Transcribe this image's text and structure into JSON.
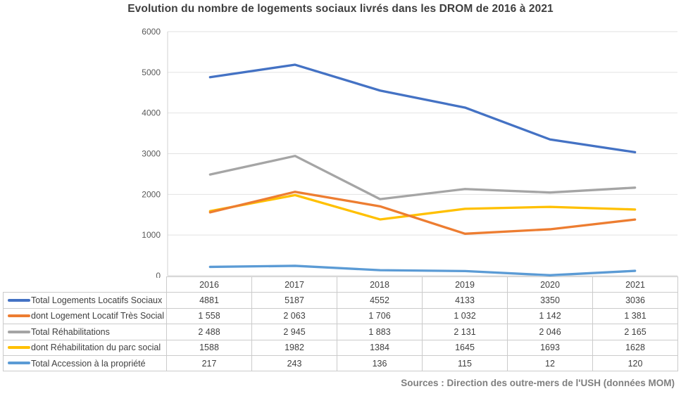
{
  "title": "Evolution du nombre de logements sociaux livrés dans les DROM de 2016 à 2021",
  "source_note": "Sources : Direction des outre-mers de l'USH (données MOM)",
  "colors": {
    "title_text": "#3f3f3f",
    "axis_label_text": "#595959",
    "gridline": "#e2e2e2",
    "axis_line": "#d2d2d2",
    "table_border": "#cbcbcb",
    "table_text": "#404040",
    "source_text": "#7f7f7f"
  },
  "chart_data": {
    "type": "line",
    "title": "Evolution du nombre de logements sociaux livrés dans les DROM de 2016 à 2021",
    "categories": [
      "2016",
      "2017",
      "2018",
      "2019",
      "2020",
      "2021"
    ],
    "series": [
      {
        "name": "Total Logements Locatifs Sociaux",
        "color": "#4472C4",
        "values": [
          4881,
          5187,
          4552,
          4133,
          3350,
          3036
        ],
        "display": [
          "4881",
          "5187",
          "4552",
          "4133",
          "3350",
          "3036"
        ]
      },
      {
        "name": "dont Logement Locatif Très Social",
        "color": "#ED7D31",
        "values": [
          1558,
          2063,
          1706,
          1032,
          1142,
          1381
        ],
        "display": [
          "1 558",
          "2 063",
          "1 706",
          "1 032",
          "1 142",
          "1 381"
        ]
      },
      {
        "name": "Total Réhabilitations",
        "color": "#A5A5A5",
        "values": [
          2488,
          2945,
          1883,
          2131,
          2046,
          2165
        ],
        "display": [
          "2 488",
          "2 945",
          "1 883",
          "2 131",
          "2 046",
          "2 165"
        ]
      },
      {
        "name": "dont Réhabilitation du parc social",
        "color": "#FFC000",
        "values": [
          1588,
          1982,
          1384,
          1645,
          1693,
          1628
        ],
        "display": [
          "1588",
          "1982",
          "1384",
          "1645",
          "1693",
          "1628"
        ]
      },
      {
        "name": "Total Accession à la propriété",
        "color": "#5B9BD5",
        "values": [
          217,
          243,
          136,
          115,
          12,
          120
        ],
        "display": [
          "217",
          "243",
          "136",
          "115",
          "12",
          "120"
        ]
      }
    ],
    "xlabel": "",
    "ylabel": "",
    "ylim": [
      0,
      6000
    ],
    "ytick_step": 1000,
    "yticks": [
      "0",
      "1000",
      "2000",
      "3000",
      "4000",
      "5000",
      "6000"
    ],
    "grid": true,
    "legend_position": "table-row-labels"
  }
}
